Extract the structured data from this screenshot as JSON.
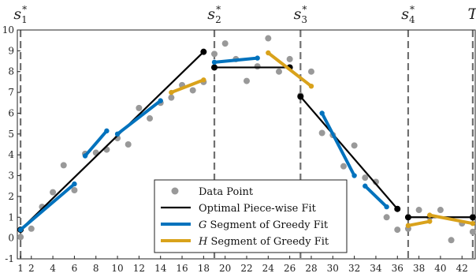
{
  "chart_data": {
    "type": "line",
    "title": "",
    "xlabel": "",
    "ylabel": "",
    "xlim": [
      0.7,
      43.3
    ],
    "ylim": [
      -1,
      10
    ],
    "xticks": [
      1,
      2,
      4,
      6,
      8,
      10,
      12,
      14,
      16,
      18,
      20,
      22,
      24,
      26,
      28,
      30,
      32,
      34,
      36,
      38,
      40,
      42
    ],
    "yticks": [
      -1,
      0,
      1,
      2,
      3,
      4,
      5,
      6,
      7,
      8,
      9,
      10
    ],
    "grid": false,
    "legend_position": "lower-center",
    "breakpoints": [
      {
        "x": 1,
        "base": "s",
        "sub": "1",
        "sup": "*"
      },
      {
        "x": 19,
        "base": "s",
        "sub": "2",
        "sup": "*"
      },
      {
        "x": 27,
        "base": "s",
        "sub": "3",
        "sup": "*"
      },
      {
        "x": 37,
        "base": "s",
        "sub": "4",
        "sup": "*"
      },
      {
        "x": 43,
        "base": "T",
        "sub": "",
        "sup": ""
      }
    ],
    "series": [
      {
        "name": "Data Point",
        "kind": "scatter",
        "color": "#999999",
        "points": [
          [
            1,
            0.05
          ],
          [
            2,
            0.45
          ],
          [
            3,
            1.5
          ],
          [
            4,
            2.2
          ],
          [
            5,
            3.5
          ],
          [
            6,
            2.3
          ],
          [
            7,
            4.05
          ],
          [
            8,
            4.1
          ],
          [
            9,
            4.25
          ],
          [
            10,
            4.8
          ],
          [
            11,
            4.5
          ],
          [
            12,
            6.25
          ],
          [
            13,
            5.75
          ],
          [
            14,
            6.5
          ],
          [
            15,
            6.75
          ],
          [
            16,
            7.35
          ],
          [
            17,
            7.1
          ],
          [
            18,
            7.5
          ],
          [
            19,
            8.85
          ],
          [
            20,
            9.35
          ],
          [
            21,
            8.6
          ],
          [
            22,
            7.55
          ],
          [
            23,
            8.25
          ],
          [
            24,
            9.6
          ],
          [
            25,
            8.0
          ],
          [
            26,
            8.6
          ],
          [
            27,
            6.85
          ],
          [
            28,
            8.0
          ],
          [
            29,
            5.05
          ],
          [
            30,
            4.95
          ],
          [
            31,
            3.45
          ],
          [
            32,
            4.45
          ],
          [
            33,
            2.9
          ],
          [
            34,
            2.7
          ],
          [
            35,
            1.0
          ],
          [
            36,
            0.4
          ],
          [
            37,
            0.45
          ],
          [
            38,
            1.35
          ],
          [
            39,
            1.0
          ],
          [
            40,
            1.35
          ],
          [
            41,
            -0.1
          ],
          [
            42,
            0.7
          ],
          [
            43,
            0.3
          ]
        ]
      },
      {
        "name": "Optimal Piece-wise Fit",
        "kind": "line",
        "color": "#000000",
        "segments": [
          [
            [
              1,
              0.4
            ],
            [
              18,
              8.95
            ]
          ],
          [
            [
              19,
              8.2
            ],
            [
              26,
              8.2
            ]
          ],
          [
            [
              27,
              6.8
            ],
            [
              36,
              1.4
            ]
          ],
          [
            [
              37,
              1.0
            ],
            [
              43,
              1.0
            ]
          ]
        ]
      },
      {
        "name": "G Segment of Greedy Fit",
        "kind": "line",
        "color": "#0072BD",
        "segments": [
          [
            [
              1,
              0.4
            ],
            [
              6,
              2.6
            ]
          ],
          [
            [
              7,
              3.95
            ],
            [
              9,
              5.15
            ]
          ],
          [
            [
              10,
              5.0
            ],
            [
              14,
              6.6
            ]
          ],
          [
            [
              19,
              8.45
            ],
            [
              23,
              8.65
            ]
          ],
          [
            [
              29,
              6.0
            ],
            [
              32,
              3.0
            ]
          ],
          [
            [
              33,
              2.5
            ],
            [
              35,
              1.5
            ]
          ]
        ]
      },
      {
        "name": "H Segment of Greedy Fit",
        "kind": "line",
        "color": "#D9A21B",
        "segments": [
          [
            [
              15,
              7.0
            ],
            [
              18,
              7.6
            ]
          ],
          [
            [
              24,
              8.9
            ],
            [
              28,
              7.3
            ]
          ],
          [
            [
              37,
              0.6
            ],
            [
              39,
              0.8
            ]
          ],
          [
            [
              39,
              1.1
            ],
            [
              43,
              0.7
            ]
          ]
        ]
      }
    ],
    "legend_entries": [
      {
        "prefix": "",
        "text": "Data Point",
        "marker": "dot",
        "color": "#999999"
      },
      {
        "prefix": "",
        "text": "Optimal Piece-wise Fit",
        "marker": "line",
        "color": "#000000"
      },
      {
        "prefix": "G",
        "text": " Segment of Greedy Fit",
        "marker": "line",
        "color": "#0072BD"
      },
      {
        "prefix": "H",
        "text": " Segment of Greedy Fit",
        "marker": "line",
        "color": "#D9A21B"
      }
    ]
  }
}
